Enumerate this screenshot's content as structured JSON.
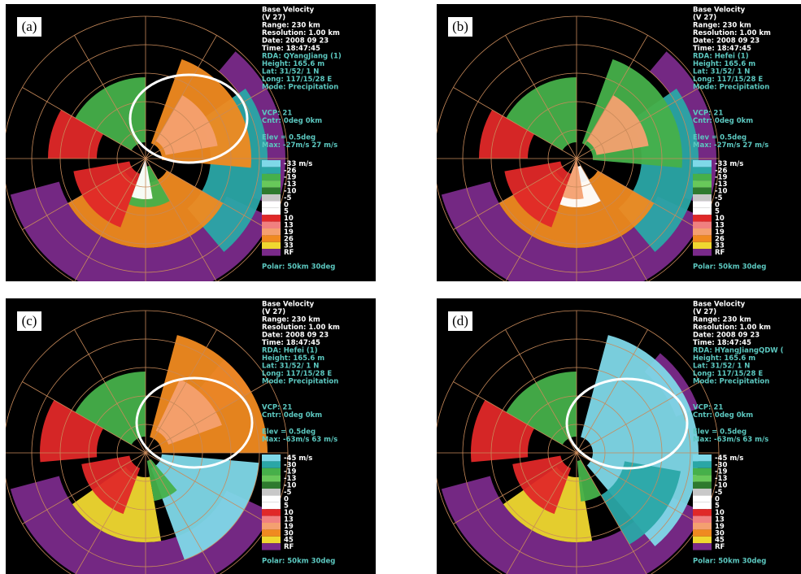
{
  "panels": [
    {
      "label": "(a)",
      "info": [
        "Base Velocity",
        "(V 27)",
        "Range: 230 km",
        "Resolution: 1.00 km",
        "Date: 2008 09 23",
        "Time: 18:47:45"
      ],
      "site": [
        "RDA: QYangJiang (1)",
        "Height: 165.6 m",
        "Lat:  31/52/ 1 N",
        "Long: 117/15/28 E",
        "Mode: Precipitation"
      ],
      "settings": [
        "VCP: 21",
        "Cntr:   0deg   0km"
      ],
      "elevation": [
        "Elev = 0.5deg",
        "Max: -27m/s  27 m/s"
      ],
      "legend": [
        "-33 m/s",
        "-26",
        "-19",
        "-13",
        "-10",
        "-5",
        "0",
        "5",
        "10",
        "13",
        "19",
        "26",
        "33",
        "RF"
      ],
      "footer": "Polar:  50km 30deg"
    },
    {
      "label": "(b)",
      "info": [
        "Base Velocity",
        "(V 27)",
        "Range: 230 km",
        "Resolution: 1.00 km",
        "Date: 2008 09 23",
        "Time: 18:47:45"
      ],
      "site": [
        "RDA: Hefei (1)",
        "Height: 165.6 m",
        "Lat:  31/52/ 1 N",
        "Long: 117/15/28 E",
        "Mode: Precipitation"
      ],
      "settings": [
        "VCP: 21",
        "Cntr:   0deg   0km"
      ],
      "elevation": [
        "Elev = 0.5deg",
        "Max: -27m/s  27 m/s"
      ],
      "legend": [
        "-33 m/s",
        "-26",
        "-19",
        "-13",
        "-10",
        "-5",
        "0",
        "5",
        "10",
        "13",
        "19",
        "26",
        "33",
        "RF"
      ],
      "footer": "Polar:  50km 30deg"
    },
    {
      "label": "(c)",
      "info": [
        "Base Velocity",
        "(V 27)",
        "Range: 230 km",
        "Resolution: 1.00 km",
        "Date: 2008 09 23",
        "Time: 18:47:45"
      ],
      "site": [
        "RDA: Hefei (1)",
        "Height: 165.6 m",
        "Lat:  31/52/ 1 N",
        "Long: 117/15/28 E",
        "Mode: Precipitation"
      ],
      "settings": [
        "VCP: 21",
        "Cntr:   0deg   0km"
      ],
      "elevation": [
        "Elev = 0.5deg",
        "Max: -63m/s  63 m/s"
      ],
      "legend": [
        "-45 m/s",
        "-30",
        "-19",
        "-13",
        "-10",
        "-5",
        "0",
        "5",
        "10",
        "13",
        "19",
        "30",
        "45",
        "RF"
      ],
      "footer": "Polar:  50km 30deg"
    },
    {
      "label": "(d)",
      "info": [
        "Base Velocity",
        "(V 27)",
        "Range: 230 km",
        "Resolution: 1.00 km",
        "Date: 2008 09 23",
        "Time: 18:47:45"
      ],
      "site": [
        "RDA: HYangJiangQDW (",
        "Height: 165.6 m",
        "Lat:  31/52/ 1 N",
        "Long: 117/15/28 E",
        "Mode: Precipitation"
      ],
      "settings": [
        "VCP: 21",
        "Cntr:   0deg   0km"
      ],
      "elevation": [
        "Elev = 0.5deg",
        "Max: -63m/s  63 m/s"
      ],
      "legend": [
        "-45 m/s",
        "-30",
        "-19",
        "-13",
        "-10",
        "-5",
        "0",
        "5",
        "10",
        "13",
        "19",
        "30",
        "45",
        "RF"
      ],
      "footer": "Polar:  50km 30deg"
    }
  ]
}
